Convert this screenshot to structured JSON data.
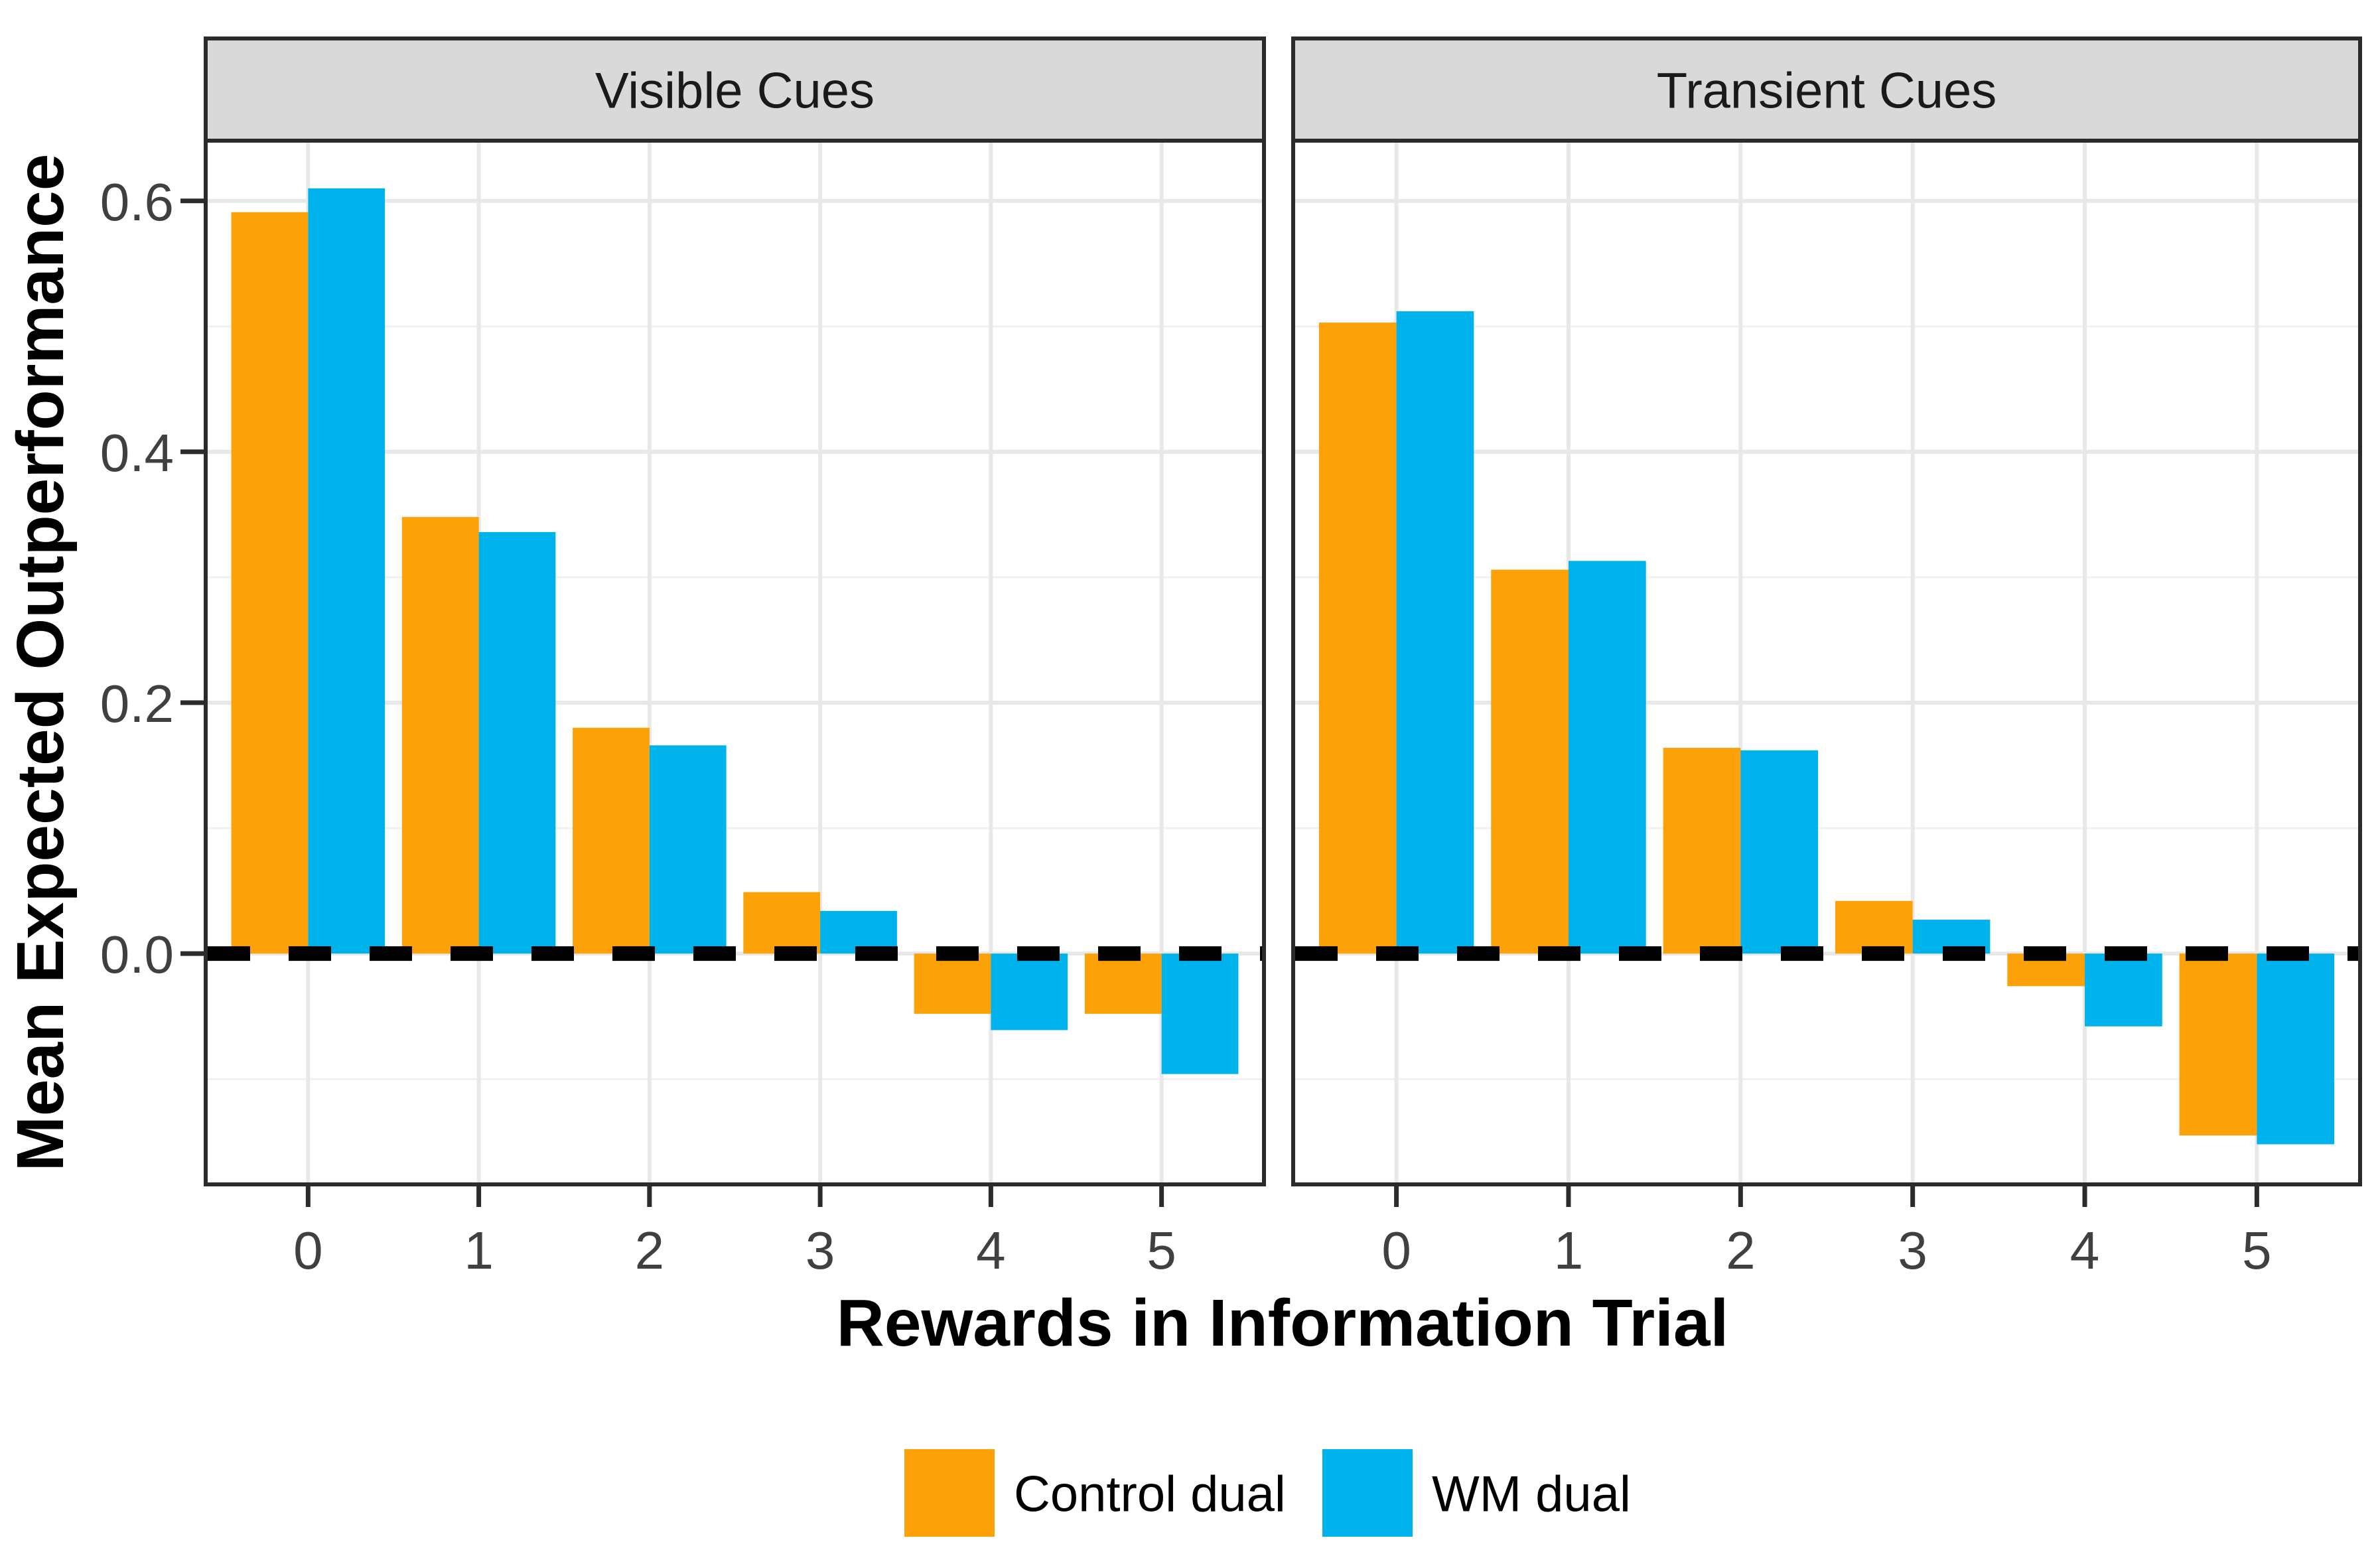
{
  "colors": {
    "control_dual": "#FCA108",
    "wm_dual": "#00B2EC",
    "strip_bg": "#D9D9D9",
    "strip_border": "#2B2B2B",
    "panel_border": "#2B2B2B",
    "grid_major": "#E8E8E8",
    "grid_minor": "#F1F1F1",
    "axis_text": "#404040",
    "title_text": "#000000",
    "zero_line": "#000000",
    "background": "#FFFFFF"
  },
  "chart_data": {
    "type": "bar",
    "title": "",
    "xlabel": "Rewards in Information Trial",
    "ylabel": "Mean Expected Outperformance",
    "categories": [
      "0",
      "1",
      "2",
      "3",
      "4",
      "5"
    ],
    "y_ticks": [
      0.0,
      0.2,
      0.4,
      0.6
    ],
    "y_tick_labels": [
      "0.0",
      "0.2",
      "0.4",
      "0.6"
    ],
    "y_minor_ticks": [
      -0.1,
      0.1,
      0.3,
      0.5
    ],
    "ylim": [
      -0.184,
      0.648
    ],
    "grid": "major and minor gridlines on white panel",
    "legend_position": "bottom",
    "zero_reference_line": "black dashed horizontal line at y = 0",
    "facets": [
      {
        "label": "Visible Cues",
        "series": [
          {
            "name": "Control dual",
            "values": [
              0.591,
              0.348,
              0.18,
              0.049,
              -0.048,
              -0.048
            ]
          },
          {
            "name": "WM dual",
            "values": [
              0.61,
              0.336,
              0.166,
              0.034,
              -0.061,
              -0.096
            ]
          }
        ]
      },
      {
        "label": "Transient Cues",
        "series": [
          {
            "name": "Control dual",
            "values": [
              0.503,
              0.306,
              0.164,
              0.042,
              -0.026,
              -0.145
            ]
          },
          {
            "name": "WM dual",
            "values": [
              0.512,
              0.313,
              0.162,
              0.027,
              -0.058,
              -0.152
            ]
          }
        ]
      }
    ],
    "legend": [
      {
        "label": "Control dual",
        "color": "#FCA108"
      },
      {
        "label": "WM dual",
        "color": "#00B2EC"
      }
    ]
  }
}
